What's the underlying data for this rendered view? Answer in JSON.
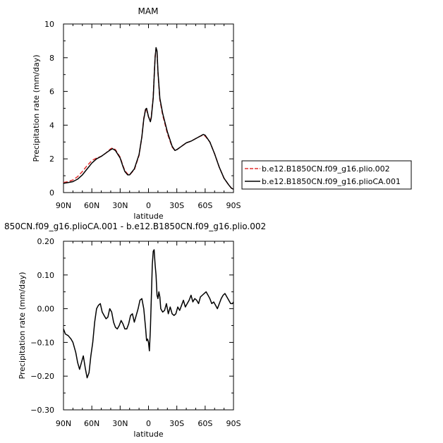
{
  "chart_data": [
    {
      "type": "line",
      "title": "MAM",
      "xlabel": "latitude",
      "ylabel": "Precipitation rate (mm/day)",
      "xlim": [
        90,
        -90
      ],
      "ylim": [
        0,
        10
      ],
      "x_ticks": [
        "90N",
        "60N",
        "30N",
        "0",
        "30S",
        "60S",
        "90S"
      ],
      "y_ticks": [
        "0",
        "2",
        "4",
        "6",
        "8",
        "10"
      ],
      "x_tick_values": [
        90,
        60,
        30,
        0,
        -30,
        -60,
        -90
      ],
      "y_tick_values": [
        0,
        2,
        4,
        6,
        8,
        10
      ],
      "legend_position": "right",
      "series": [
        {
          "name": "b.e12.B1850CN.f09_g16.plio.002",
          "color": "#e03030",
          "dash": "dashed",
          "x": [
            90,
            85,
            80,
            75,
            70,
            65,
            60,
            55,
            50,
            45,
            40,
            38,
            35,
            30,
            27,
            25,
            22,
            20,
            15,
            10,
            7,
            5,
            3,
            2,
            0,
            -2,
            -3,
            -5,
            -6,
            -7,
            -8,
            -9,
            -10,
            -12,
            -15,
            -20,
            -25,
            -28,
            -30,
            -35,
            -40,
            -45,
            -50,
            -55,
            -58,
            -60,
            -65,
            -70,
            -75,
            -80,
            -85,
            -88,
            -90
          ],
          "y": [
            0.6,
            0.65,
            0.75,
            0.95,
            1.25,
            1.6,
            1.9,
            2.05,
            2.15,
            2.35,
            2.6,
            2.65,
            2.55,
            2.1,
            1.6,
            1.3,
            1.1,
            1.05,
            1.35,
            2.2,
            3.3,
            4.4,
            5.0,
            4.9,
            4.5,
            4.25,
            4.5,
            5.7,
            6.9,
            8.1,
            8.5,
            8.3,
            7.1,
            5.5,
            4.6,
            3.5,
            2.7,
            2.5,
            2.55,
            2.75,
            2.95,
            3.05,
            3.2,
            3.35,
            3.4,
            3.35,
            3.0,
            2.3,
            1.5,
            0.85,
            0.45,
            0.25,
            0.2
          ]
        },
        {
          "name": "b.e12.B1850CN.f09_g16.plioCA.001",
          "color": "#000000",
          "dash": "solid",
          "x": [
            90,
            85,
            80,
            75,
            70,
            65,
            60,
            55,
            50,
            45,
            40,
            38,
            35,
            30,
            27,
            25,
            22,
            20,
            15,
            10,
            7,
            5,
            3,
            2,
            0,
            -2,
            -3,
            -5,
            -6,
            -7,
            -8,
            -9,
            -10,
            -12,
            -15,
            -20,
            -25,
            -28,
            -30,
            -35,
            -40,
            -45,
            -50,
            -55,
            -58,
            -60,
            -65,
            -70,
            -75,
            -80,
            -85,
            -88,
            -90
          ],
          "y": [
            0.55,
            0.6,
            0.65,
            0.8,
            1.05,
            1.4,
            1.75,
            2.0,
            2.15,
            2.35,
            2.55,
            2.6,
            2.5,
            2.05,
            1.55,
            1.25,
            1.05,
            1.05,
            1.4,
            2.25,
            3.3,
            4.35,
            4.95,
            5.0,
            4.5,
            4.2,
            4.45,
            5.6,
            6.8,
            8.0,
            8.6,
            8.4,
            7.2,
            5.6,
            4.7,
            3.6,
            2.75,
            2.5,
            2.55,
            2.75,
            2.95,
            3.05,
            3.2,
            3.35,
            3.45,
            3.4,
            3.0,
            2.3,
            1.5,
            0.85,
            0.45,
            0.25,
            0.2
          ]
        }
      ]
    },
    {
      "type": "line",
      "title": "850CN.f09_g16.plioCA.001 - b.e12.B1850CN.f09_g16.plio.002",
      "xlabel": "latitude",
      "ylabel": "Precipitation rate (mm/day)",
      "xlim": [
        90,
        -90
      ],
      "ylim": [
        -0.3,
        0.2
      ],
      "x_ticks": [
        "90N",
        "60N",
        "30N",
        "0",
        "30S",
        "60S",
        "90S"
      ],
      "y_ticks": [
        "−0.30",
        "−0.20",
        "−0.10",
        "0.00",
        "0.10",
        "0.20"
      ],
      "x_tick_values": [
        90,
        60,
        30,
        0,
        -30,
        -60,
        -90
      ],
      "y_tick_values": [
        -0.3,
        -0.2,
        -0.1,
        0.0,
        0.1,
        0.2
      ],
      "series": [
        {
          "color": "#000000",
          "dash": "solid",
          "x": [
            90,
            88,
            85,
            82,
            80,
            77,
            75,
            73,
            71,
            69,
            67,
            65,
            63,
            61,
            59,
            57,
            55,
            53,
            51,
            49,
            47,
            45,
            43,
            41,
            39,
            37,
            35,
            33,
            31,
            29,
            27,
            25,
            23,
            21,
            19,
            17,
            15,
            13,
            11,
            9,
            7,
            5,
            3,
            2,
            1,
            0,
            -1,
            -2,
            -3,
            -4,
            -5,
            -6,
            -7,
            -8,
            -9,
            -10,
            -11,
            -12,
            -13,
            -15,
            -17,
            -19,
            -21,
            -23,
            -25,
            -27,
            -29,
            -31,
            -33,
            -35,
            -37,
            -39,
            -41,
            -43,
            -45,
            -47,
            -49,
            -51,
            -53,
            -55,
            -57,
            -59,
            -61,
            -63,
            -65,
            -67,
            -69,
            -71,
            -73,
            -75,
            -77,
            -79,
            -81,
            -83,
            -85,
            -87,
            -89,
            -90
          ],
          "y": [
            -0.06,
            -0.075,
            -0.08,
            -0.09,
            -0.1,
            -0.13,
            -0.16,
            -0.18,
            -0.16,
            -0.14,
            -0.175,
            -0.205,
            -0.19,
            -0.14,
            -0.1,
            -0.04,
            0.0,
            0.01,
            0.015,
            -0.01,
            -0.02,
            -0.03,
            -0.025,
            0.0,
            -0.01,
            -0.04,
            -0.055,
            -0.06,
            -0.05,
            -0.035,
            -0.045,
            -0.06,
            -0.06,
            -0.045,
            -0.02,
            -0.015,
            -0.04,
            -0.02,
            0.0,
            0.025,
            0.03,
            0.0,
            -0.06,
            -0.095,
            -0.09,
            -0.1,
            -0.125,
            -0.06,
            0.03,
            0.13,
            0.17,
            0.175,
            0.13,
            0.1,
            0.04,
            0.03,
            0.05,
            0.035,
            0.0,
            -0.01,
            -0.005,
            0.015,
            -0.015,
            0.005,
            -0.015,
            -0.02,
            -0.015,
            0.005,
            -0.005,
            0.01,
            0.025,
            0.005,
            0.015,
            0.025,
            0.04,
            0.02,
            0.03,
            0.025,
            0.015,
            0.035,
            0.04,
            0.045,
            0.05,
            0.04,
            0.03,
            0.015,
            0.02,
            0.01,
            0.0,
            0.015,
            0.03,
            0.04,
            0.045,
            0.035,
            0.025,
            0.015,
            0.015,
            0.02
          ]
        }
      ]
    }
  ]
}
